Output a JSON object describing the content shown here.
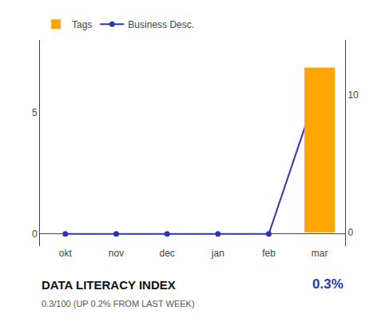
{
  "chart_data": {
    "type": "line",
    "title": "DATA LITERACY INDEX",
    "subtitle": "0.3/100 (UP 0.2% FROM LAST WEEK)",
    "annotations": [
      {
        "text": "0.3%",
        "color": "#2B35AF"
      }
    ],
    "categories": [
      "okt",
      "nov",
      "dec",
      "jan",
      "feb",
      "mar"
    ],
    "series": [
      {
        "name": "Business Desc.",
        "type": "line",
        "color": "#2B35AF",
        "marker": "circle",
        "values": [
          0,
          0,
          0,
          0,
          0,
          6.2
        ]
      },
      {
        "name": "Tags",
        "type": "bar",
        "color": "#FFA500",
        "axis": "y2",
        "values": [
          null,
          null,
          null,
          null,
          null,
          12
        ]
      }
    ],
    "ylim": [
      -0.5,
      8
    ],
    "yticks": [
      0,
      5
    ],
    "y2lim": [
      -1,
      14
    ],
    "y2ticks": [
      0,
      10
    ],
    "grid": false,
    "legend": "top"
  }
}
